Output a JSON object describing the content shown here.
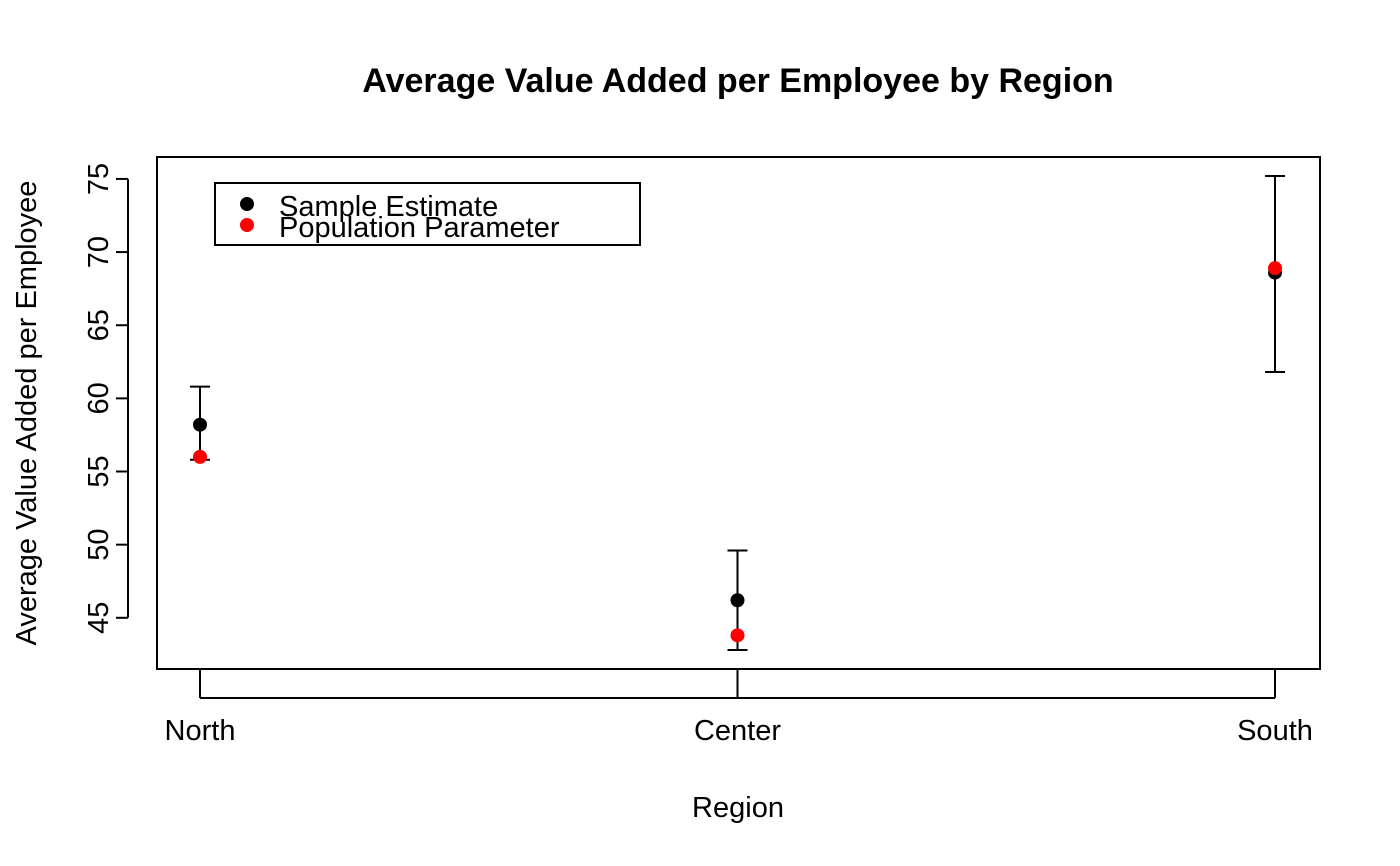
{
  "chart_data": {
    "type": "scatter",
    "title": "Average Value Added per Employee by Region",
    "xlabel": "Region",
    "ylabel": "Average Value Added per Employee",
    "categories": [
      "North",
      "Center",
      "South"
    ],
    "ylim": [
      41.5,
      76.5
    ],
    "yticks": [
      45,
      50,
      55,
      60,
      65,
      70,
      75
    ],
    "grid": false,
    "legend_position": "top-left",
    "series": [
      {
        "name": "Sample Estimate",
        "color": "#000000",
        "values": [
          58.2,
          46.2,
          68.6
        ],
        "ci_lower": [
          55.8,
          42.8,
          61.8
        ],
        "ci_upper": [
          60.8,
          49.6,
          75.2
        ]
      },
      {
        "name": "Population Parameter",
        "color": "#ff0000",
        "values": [
          56.0,
          43.8,
          68.9
        ]
      }
    ]
  }
}
